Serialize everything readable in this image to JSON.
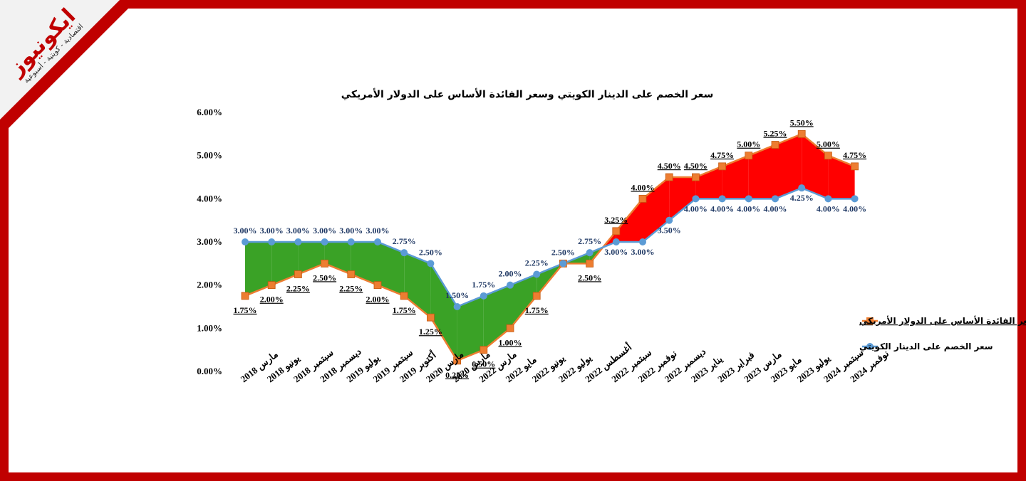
{
  "brand": {
    "logo_text": "ايكونيوز",
    "tagline": "اقتصادية - كويتية - أسبوعية",
    "frame_color": "#c00000",
    "logo_color": "#c00000"
  },
  "chart_data": {
    "type": "area-line",
    "title": "سعر الخصم على الدينار الكويتي وسعر الفائدة الأساس على الدولار الأمريكي",
    "categories": [
      "مارس 2018",
      "يونيو 2018",
      "سبتمبر 2018",
      "ديسمبر 2018",
      "يوليو 2019",
      "سبتمبر 2019",
      "أكتوبر 2019",
      "مارس 2020",
      "مارس 2020",
      "مارس 2022",
      "مايو 2022",
      "يونيو 2022",
      "يوليو 2022",
      "أغسطس 2022",
      "سبتمبر 2022",
      "نوفمبر 2022",
      "ديسمبر 2022",
      "يناير 2023",
      "فبراير 2023",
      "مارس 2023",
      "مايو 2023",
      "يوليو 2023",
      "سبتمبر 2024",
      "نوفمبر 2024"
    ],
    "y_ticks": [
      "0.00%",
      "1.00%",
      "2.00%",
      "3.00%",
      "4.00%",
      "5.00%",
      "6.00%"
    ],
    "ylim": [
      0,
      6
    ],
    "series": [
      {
        "name": "سعر الفائدة الأساس على الدولار الأمريكي",
        "color": "#ed7d31",
        "marker": "square",
        "values": [
          1.75,
          2.0,
          2.25,
          2.5,
          2.25,
          2.0,
          1.75,
          1.25,
          0.25,
          0.5,
          1.0,
          1.75,
          2.5,
          2.5,
          3.25,
          4.0,
          4.5,
          4.5,
          4.75,
          5.0,
          5.25,
          5.5,
          5.0,
          4.75
        ],
        "labels": [
          "1.75%",
          "2.00%",
          "2.25%",
          "2.50%",
          "2.25%",
          "2.00%",
          "1.75%",
          "1.25%",
          "0.25%",
          "0.50%",
          "1.00%",
          "1.75%",
          "",
          "2.50%",
          "3.25%",
          "4.00%",
          "4.50%",
          "4.50%",
          "4.75%",
          "5.00%",
          "5.25%",
          "5.50%",
          "5.00%",
          "4.75%"
        ]
      },
      {
        "name": "سعر الخصم على الدينار الكويتي",
        "color": "#5b9bd5",
        "marker": "circle",
        "values": [
          3.0,
          3.0,
          3.0,
          3.0,
          3.0,
          3.0,
          2.75,
          2.5,
          1.5,
          1.75,
          2.0,
          2.25,
          2.5,
          2.75,
          3.0,
          3.0,
          3.5,
          4.0,
          4.0,
          4.0,
          4.0,
          4.25,
          4.0,
          4.0
        ],
        "labels": [
          "3.00%",
          "3.00%",
          "3.00%",
          "3.00%",
          "3.00%",
          "3.00%",
          "2.75%",
          "2.50%",
          "1.50%",
          "1.75%",
          "2.00%",
          "2.25%",
          "2.50%",
          "2.75%",
          "3.00%",
          "3.00%",
          "3.50%",
          "4.00%",
          "4.00%",
          "4.00%",
          "4.00%",
          "4.25%",
          "4.00%",
          "4.00%"
        ]
      }
    ],
    "fill_colors": {
      "kwd_above": "#3aa226",
      "usd_above": "#ff0000"
    },
    "label_color_usd": "#000000",
    "label_color_kwd": "#1f3864",
    "legend_position": "right"
  }
}
